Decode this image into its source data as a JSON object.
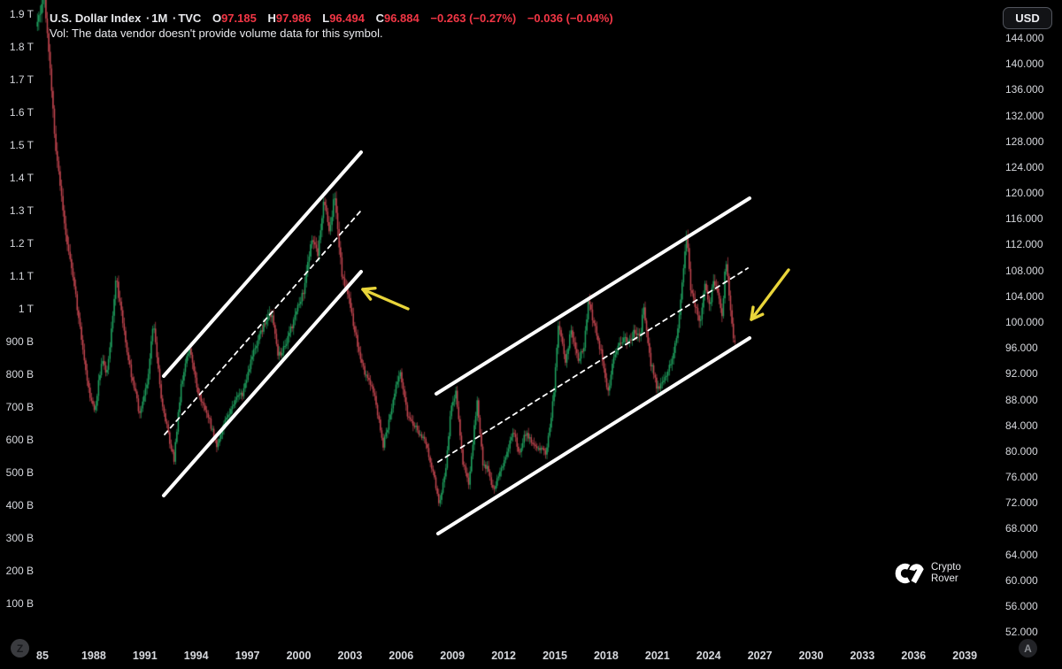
{
  "header": {
    "symbol_title": "U.S. Dollar Index",
    "interval": "1M",
    "exchange": "TVC",
    "separator": "·",
    "ohlc": {
      "o_label": "O",
      "o": "97.185",
      "h_label": "H",
      "h": "97.986",
      "l_label": "L",
      "l": "96.494",
      "c_label": "C",
      "c": "96.884"
    },
    "change_primary": "−0.263 (−0.27%)",
    "change_secondary": "−0.036 (−0.04%)",
    "vol_note": "Vol: The data vendor doesn't provide volume data for this symbol."
  },
  "top_right": {
    "currency_button": "USD"
  },
  "badges": {
    "bottom_left": "Z",
    "bottom_right": "A"
  },
  "watermark": {
    "name": "Crypto Rover",
    "line1": "Crypto",
    "line2": "Rover"
  },
  "chart_data": {
    "type": "candlestick",
    "title": "U.S. Dollar Index · 1M · TVC",
    "timeframe": "1M",
    "grid": "off",
    "legend_position": "none",
    "last_bar": {
      "open": 97.185,
      "high": 97.986,
      "low": 96.494,
      "close": 96.884
    },
    "price_axis": {
      "min": 52,
      "max": 144,
      "tick_step": 4,
      "labels": [
        "144.000",
        "140.000",
        "136.000",
        "132.000",
        "128.000",
        "124.000",
        "120.000",
        "116.000",
        "112.000",
        "108.000",
        "104.000",
        "100.000",
        "96.000",
        "92.000",
        "88.000",
        "84.000",
        "80.000",
        "76.000",
        "72.000",
        "68.000",
        "64.000",
        "60.000",
        "56.000",
        "52.000"
      ]
    },
    "volume_axis": {
      "labels": [
        "1.9 T",
        "1.8 T",
        "1.7 T",
        "1.6 T",
        "1.5 T",
        "1.4 T",
        "1.3 T",
        "1.2 T",
        "1.1 T",
        "1 T",
        "900 B",
        "800 B",
        "700 B",
        "600 B",
        "500 B",
        "400 B",
        "300 B",
        "200 B",
        "100 B"
      ]
    },
    "x_axis": {
      "labels": [
        "85",
        "1988",
        "1991",
        "1994",
        "1997",
        "2000",
        "2003",
        "2006",
        "2009",
        "2012",
        "2015",
        "2018",
        "2021",
        "2024",
        "2027",
        "2030",
        "2033",
        "2036",
        "2039"
      ],
      "years": [
        1985,
        1988,
        1991,
        1994,
        1997,
        2000,
        2003,
        2006,
        2009,
        2012,
        2015,
        2018,
        2021,
        2024,
        2027,
        2030,
        2033,
        2036,
        2039
      ]
    },
    "price_path": [
      [
        1984.68,
        146
      ],
      [
        1985.12,
        150
      ],
      [
        1985.45,
        139
      ],
      [
        1985.8,
        126
      ],
      [
        1986.3,
        115
      ],
      [
        1986.8,
        107
      ],
      [
        1987.3,
        97
      ],
      [
        1987.75,
        89
      ],
      [
        1988.05,
        86
      ],
      [
        1988.45,
        94
      ],
      [
        1988.8,
        92
      ],
      [
        1989.3,
        107
      ],
      [
        1989.75,
        99
      ],
      [
        1990.2,
        92
      ],
      [
        1990.7,
        85.5
      ],
      [
        1991.1,
        90
      ],
      [
        1991.5,
        100
      ],
      [
        1991.95,
        88.5
      ],
      [
        1992.4,
        82
      ],
      [
        1992.7,
        78.6
      ],
      [
        1993.1,
        90
      ],
      [
        1993.6,
        96
      ],
      [
        1994.1,
        89
      ],
      [
        1994.65,
        86
      ],
      [
        1995.2,
        80.6
      ],
      [
        1995.6,
        84
      ],
      [
        1996.1,
        87
      ],
      [
        1996.7,
        89
      ],
      [
        1997.3,
        95
      ],
      [
        1997.9,
        99
      ],
      [
        1998.4,
        101.5
      ],
      [
        1998.8,
        94.5
      ],
      [
        1999.3,
        97
      ],
      [
        1999.8,
        101
      ],
      [
        2000.3,
        105
      ],
      [
        2000.8,
        113
      ],
      [
        2001.1,
        110.5
      ],
      [
        2001.5,
        119
      ],
      [
        2001.8,
        113.5
      ],
      [
        2002.1,
        120.3
      ],
      [
        2002.5,
        108
      ],
      [
        2002.9,
        104
      ],
      [
        2003.4,
        97
      ],
      [
        2003.9,
        92
      ],
      [
        2004.4,
        89
      ],
      [
        2004.95,
        81
      ],
      [
        2005.4,
        86
      ],
      [
        2005.9,
        92.5
      ],
      [
        2006.4,
        85
      ],
      [
        2006.9,
        83.5
      ],
      [
        2007.4,
        81.5
      ],
      [
        2007.9,
        76.5
      ],
      [
        2008.2,
        71.6
      ],
      [
        2008.6,
        77
      ],
      [
        2008.95,
        87.5
      ],
      [
        2009.2,
        89
      ],
      [
        2009.6,
        78.5
      ],
      [
        2009.95,
        75
      ],
      [
        2010.15,
        80
      ],
      [
        2010.45,
        88
      ],
      [
        2010.8,
        77.5
      ],
      [
        2011.1,
        77.5
      ],
      [
        2011.4,
        73.5
      ],
      [
        2011.8,
        77
      ],
      [
        2012.2,
        79.5
      ],
      [
        2012.55,
        83.5
      ],
      [
        2012.9,
        79.5
      ],
      [
        2013.3,
        83
      ],
      [
        2013.7,
        81
      ],
      [
        2014.1,
        80.3
      ],
      [
        2014.5,
        79.8
      ],
      [
        2014.95,
        89
      ],
      [
        2015.2,
        99.5
      ],
      [
        2015.6,
        94
      ],
      [
        2015.95,
        98.8
      ],
      [
        2016.35,
        93.8
      ],
      [
        2016.7,
        96
      ],
      [
        2016.95,
        103
      ],
      [
        2017.4,
        99
      ],
      [
        2017.9,
        92.8
      ],
      [
        2018.1,
        89
      ],
      [
        2018.5,
        95
      ],
      [
        2018.95,
        97
      ],
      [
        2019.35,
        97.3
      ],
      [
        2019.7,
        98.7
      ],
      [
        2020.0,
        97.8
      ],
      [
        2020.2,
        102.6
      ],
      [
        2020.6,
        93.8
      ],
      [
        2021.0,
        89.7
      ],
      [
        2021.4,
        91
      ],
      [
        2021.8,
        94
      ],
      [
        2022.1,
        97
      ],
      [
        2022.4,
        104
      ],
      [
        2022.72,
        114.3
      ],
      [
        2022.95,
        104.8
      ],
      [
        2023.3,
        101.8
      ],
      [
        2023.55,
        100
      ],
      [
        2023.8,
        106.6
      ],
      [
        2024.0,
        101.8
      ],
      [
        2024.3,
        106.2
      ],
      [
        2024.55,
        104.4
      ],
      [
        2024.78,
        100.5
      ],
      [
        2024.97,
        108.4
      ],
      [
        2025.06,
        110
      ],
      [
        2025.2,
        104.3
      ],
      [
        2025.35,
        99.6
      ],
      [
        2025.5,
        96.9
      ]
    ],
    "colors": {
      "up": "#1fa15f",
      "down": "#c2454f",
      "channel": "#ffffff",
      "arrow": "#e9d53a",
      "value_red": "#f23645",
      "background": "#000000"
    },
    "overlays": {
      "channels": [
        {
          "name": "channel-1",
          "upper": [
            [
              185,
              425
            ],
            [
              408,
              172
            ]
          ],
          "middle": [
            [
              186,
              491
            ],
            [
              407,
              239
            ]
          ],
          "lower": [
            [
              185,
              560
            ],
            [
              408,
              307
            ]
          ]
        },
        {
          "name": "channel-2",
          "upper": [
            [
              493,
              445
            ],
            [
              847,
              224
            ]
          ],
          "middle": [
            [
              495,
              522
            ],
            [
              845,
              303
            ]
          ],
          "lower": [
            [
              495,
              603
            ],
            [
              847,
              382
            ]
          ]
        }
      ],
      "arrows": [
        {
          "name": "arrow-1",
          "tail": [
            461,
            349
          ],
          "head": [
            410,
            327
          ]
        },
        {
          "name": "arrow-2",
          "tail": [
            891,
            305
          ],
          "head": [
            849,
            361
          ]
        }
      ]
    }
  }
}
